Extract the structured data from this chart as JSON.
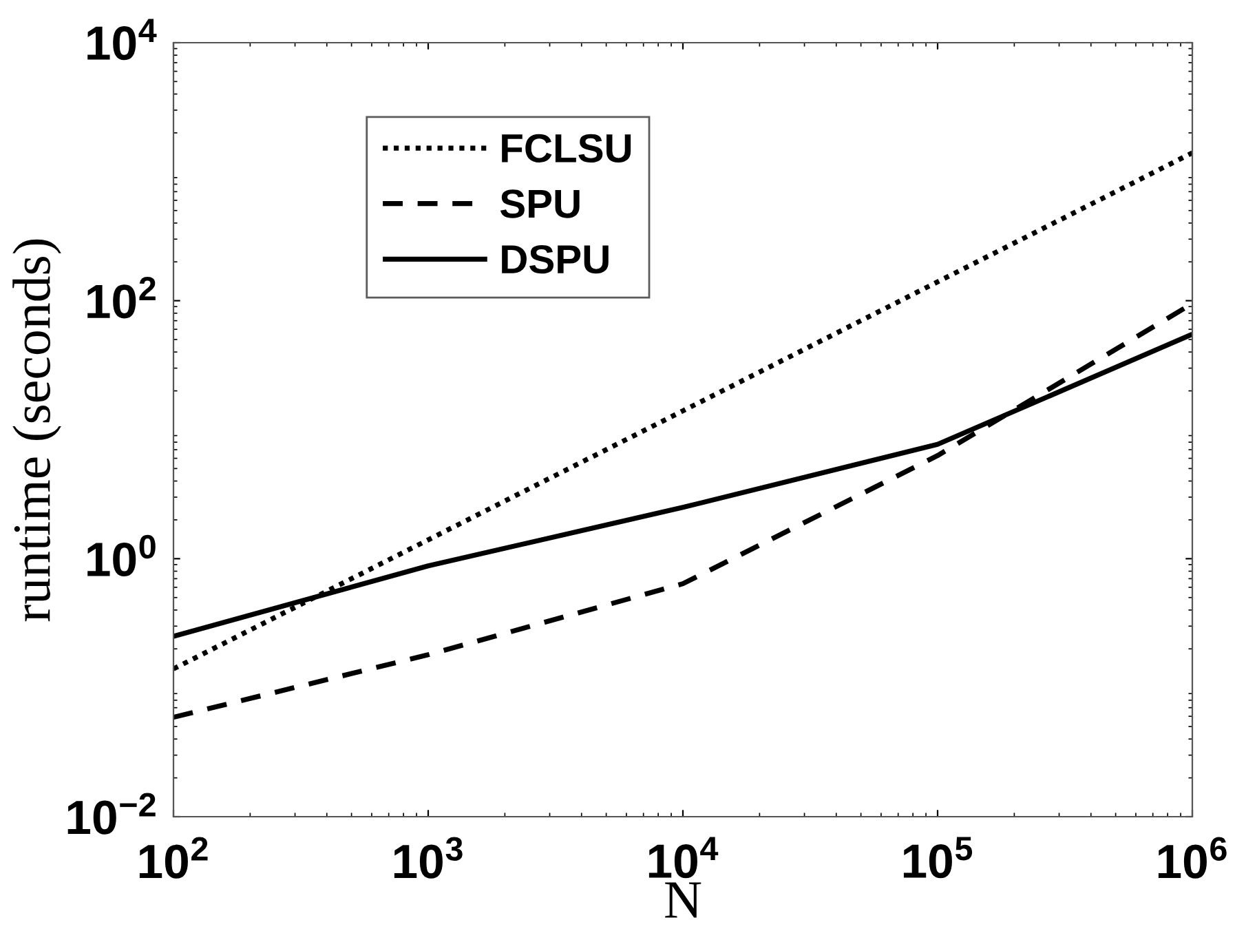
{
  "chart_data": {
    "type": "line",
    "xlabel": "N",
    "ylabel": "runtime (seconds)",
    "x": [
      100,
      1000,
      10000,
      100000,
      1000000
    ],
    "series": [
      {
        "name": "FCLSU",
        "color": "#000000",
        "line_style": "dotted",
        "values": [
          0.14,
          1.4,
          14,
          140,
          1400
        ]
      },
      {
        "name": "SPU",
        "color": "#000000",
        "line_style": "dashed",
        "values": [
          0.059,
          0.18,
          0.64,
          6.3,
          95
        ]
      },
      {
        "name": "DSPU",
        "color": "#000000",
        "line_style": "solid",
        "values": [
          0.25,
          0.88,
          2.5,
          7.7,
          55
        ]
      }
    ],
    "log": "xy",
    "xlim": [
      100,
      1000000
    ],
    "ylim": [
      0.01,
      10000
    ],
    "xticks": [
      {
        "value": 100,
        "label": "10$^{2}$"
      },
      {
        "value": 1000,
        "label": "10$^{3}$"
      },
      {
        "value": 10000,
        "label": "10$^{4}$"
      },
      {
        "value": 100000,
        "label": "10$^{5}$"
      },
      {
        "value": 1000000,
        "label": "10$^{6}$"
      }
    ],
    "yticks": [
      {
        "value": 0.01,
        "label": "10$^{−2}$"
      },
      {
        "value": 1,
        "label": "10$^{0}$"
      },
      {
        "value": 100,
        "label": "10$^{2}$"
      },
      {
        "value": 10000,
        "label": "10$^{4}$"
      }
    ],
    "legend": "top left",
    "grid": false,
    "marker": "none"
  }
}
